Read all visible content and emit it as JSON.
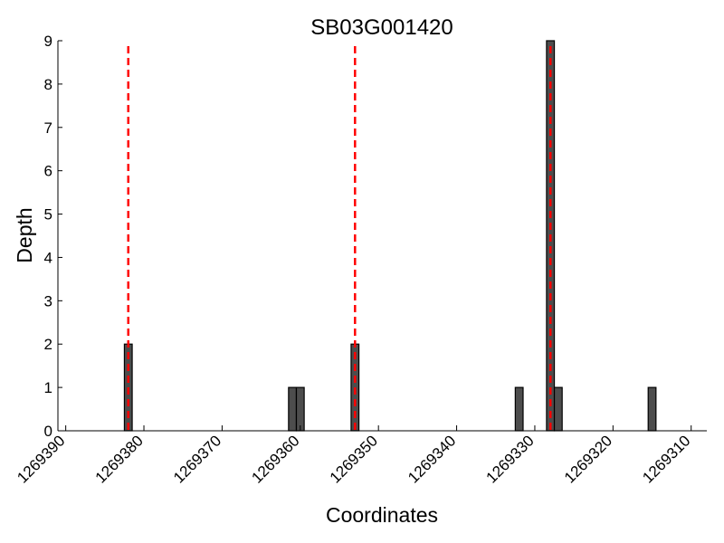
{
  "chart_data": {
    "type": "bar",
    "title": "SB03G001420",
    "xlabel": "Coordinates",
    "ylabel": "Depth",
    "x_reversed": true,
    "xlim": [
      1269391,
      1269308
    ],
    "ylim": [
      0,
      9
    ],
    "x_ticks": [
      1269390,
      1269380,
      1269370,
      1269360,
      1269350,
      1269340,
      1269330,
      1269320,
      1269310
    ],
    "y_ticks": [
      0,
      1,
      2,
      3,
      4,
      5,
      6,
      7,
      8,
      9
    ],
    "grid": false,
    "bar_color": "#4d4d4d",
    "marker_color": "#ff0000",
    "bars": [
      {
        "x": 1269382,
        "depth": 2
      },
      {
        "x": 1269361,
        "depth": 1
      },
      {
        "x": 1269360,
        "depth": 1
      },
      {
        "x": 1269353,
        "depth": 2
      },
      {
        "x": 1269332,
        "depth": 1
      },
      {
        "x": 1269328,
        "depth": 9
      },
      {
        "x": 1269327,
        "depth": 1
      },
      {
        "x": 1269315,
        "depth": 1
      }
    ],
    "markers": [
      1269382,
      1269353,
      1269328
    ]
  }
}
